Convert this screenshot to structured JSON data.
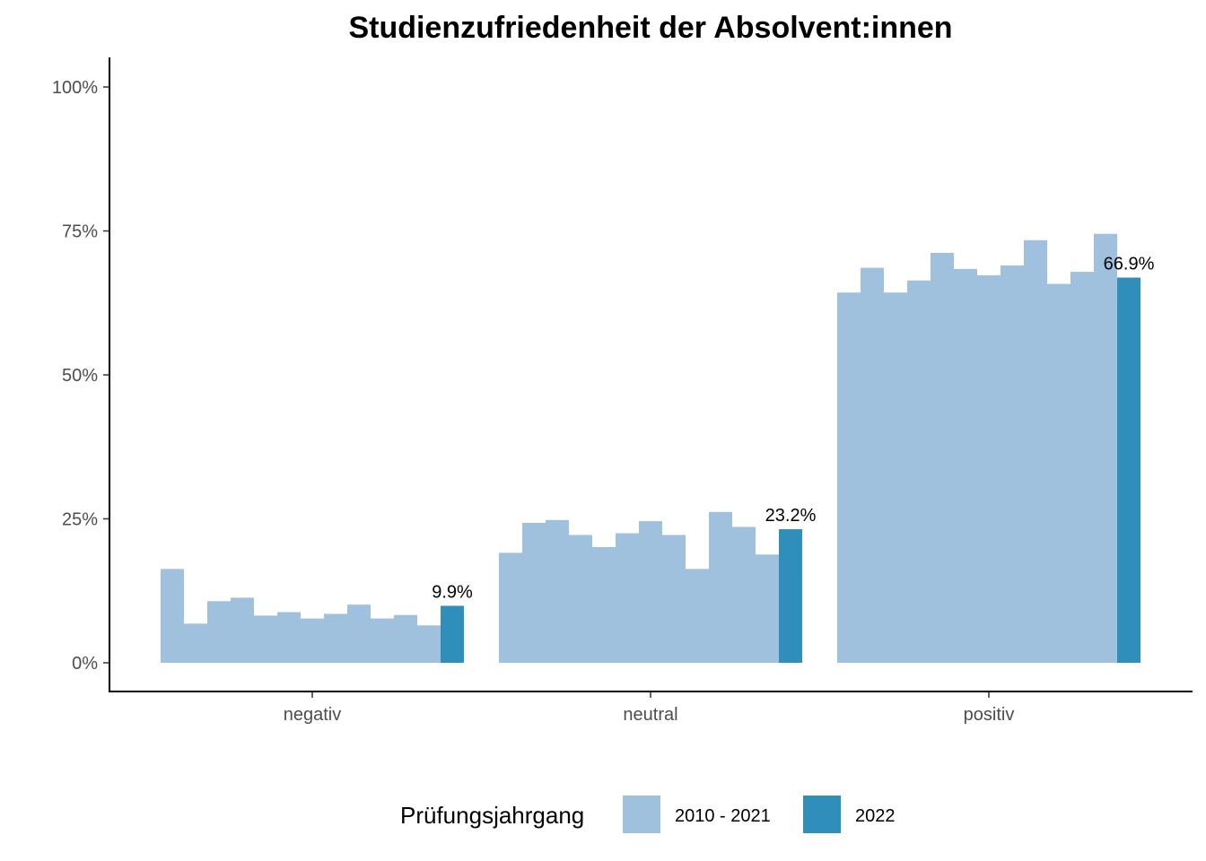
{
  "chart_data": {
    "type": "bar",
    "title": "Studienzufriedenheit der Absolvent:innen",
    "xlabel": "",
    "ylabel": "",
    "ylim": [
      0,
      1.05
    ],
    "yticks": [
      0,
      0.25,
      0.5,
      0.75,
      1.0
    ],
    "ytick_labels": [
      "0%",
      "25%",
      "50%",
      "75%",
      "100%"
    ],
    "grid": false,
    "legend_position": "bottom",
    "legend_title": "Prüfungsjahrgang",
    "categories": [
      "negativ",
      "neutral",
      "positiv"
    ],
    "series": [
      {
        "name": "2010 - 2021",
        "color": "#a0c1dd",
        "values": [
          [
            0.163,
            0.068,
            0.107,
            0.113,
            0.082,
            0.088,
            0.077,
            0.085,
            0.101,
            0.077,
            0.083,
            0.065
          ],
          [
            0.191,
            0.243,
            0.248,
            0.222,
            0.201,
            0.225,
            0.246,
            0.222,
            0.163,
            0.262,
            0.236,
            0.188
          ],
          [
            0.643,
            0.686,
            0.643,
            0.664,
            0.712,
            0.684,
            0.673,
            0.69,
            0.734,
            0.658,
            0.679,
            0.745
          ]
        ]
      },
      {
        "name": "2022",
        "color": "#308eba",
        "values": [
          0.099,
          0.232,
          0.669
        ],
        "labels": [
          "9.9%",
          "23.2%",
          "66.9%"
        ]
      }
    ]
  }
}
